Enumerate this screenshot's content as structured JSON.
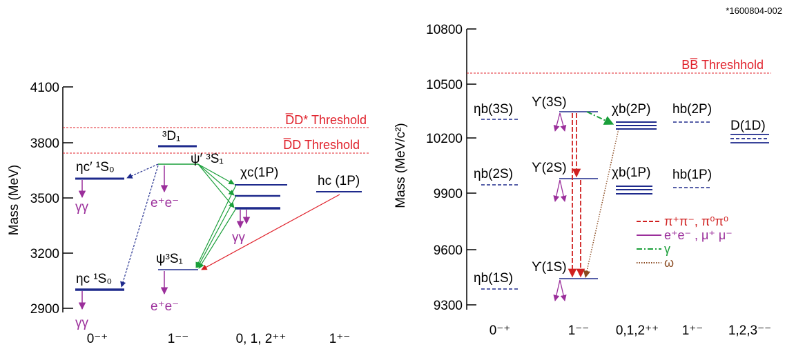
{
  "figure_id": "*1600804-002",
  "colors": {
    "level": "#1e2a8c",
    "threshold": "#e0202a",
    "hadronic": "#d02020",
    "leptonic": "#9b2f9b",
    "gamma": "#1a9f3a",
    "omega": "#8a4a20",
    "eta_prime": "#1ab0e0"
  },
  "charmonium": {
    "y_axis_label": "Mass (MeV)",
    "y_ticks": [
      "4100",
      "3800",
      "3500",
      "3200",
      "2900"
    ],
    "columns": [
      "0⁻⁺",
      "1⁻⁻",
      "0, 1, 2⁺⁺",
      "1⁺⁻"
    ],
    "threshold_dd_star": "D̅D* Threshold",
    "threshold_dd": "D̅D Threshold",
    "state_3d1": "³D₁",
    "state_psi_prime": "ψ′ ³S₁",
    "state_psi": "ψ³S₁",
    "state_chi_c": "χc(1P)",
    "state_hc": "hc (1P)",
    "state_eta_c_prime": "ηc′ ¹S₀",
    "state_eta_c": "ηc ¹S₀",
    "decay_gg_1": "γγ",
    "decay_gg_2": "γγ",
    "decay_gg_3": "γγ",
    "decay_ee_1": "e⁺e⁻",
    "decay_ee_2": "e⁺e⁻"
  },
  "bottomonium": {
    "y_axis_label": "Mass (MeV/c²)",
    "y_ticks": [
      "10800",
      "10500",
      "10200",
      "9900",
      "9600",
      "9300"
    ],
    "columns": [
      "0⁻⁺",
      "1⁻⁻",
      "0,1,2⁺⁺",
      "1⁺⁻",
      "1,2,3⁻⁻"
    ],
    "threshold_bb": "BB̅ Threshhold",
    "state_eta_b_3s": "ηb(3S)",
    "state_eta_b_2s": "ηb(2S)",
    "state_eta_b_1s": "ηb(1S)",
    "state_upsilon_3s": "ϒ(3S)",
    "state_upsilon_2s": "ϒ(2S)",
    "state_upsilon_1s": "ϒ(1S)",
    "state_chi_b_2p": "χb(2P)",
    "state_chi_b_1p": "χb(1P)",
    "state_h_b_2p": "hb(2P)",
    "state_h_b_1p": "hb(1P)",
    "state_d_1d": "D(1D)"
  },
  "legend": {
    "hadronic": "π⁺π⁻, π⁰π⁰",
    "leptonic": "e⁺e⁻ , μ⁺ μ⁻",
    "gamma": "γ",
    "omega": "ω"
  }
}
